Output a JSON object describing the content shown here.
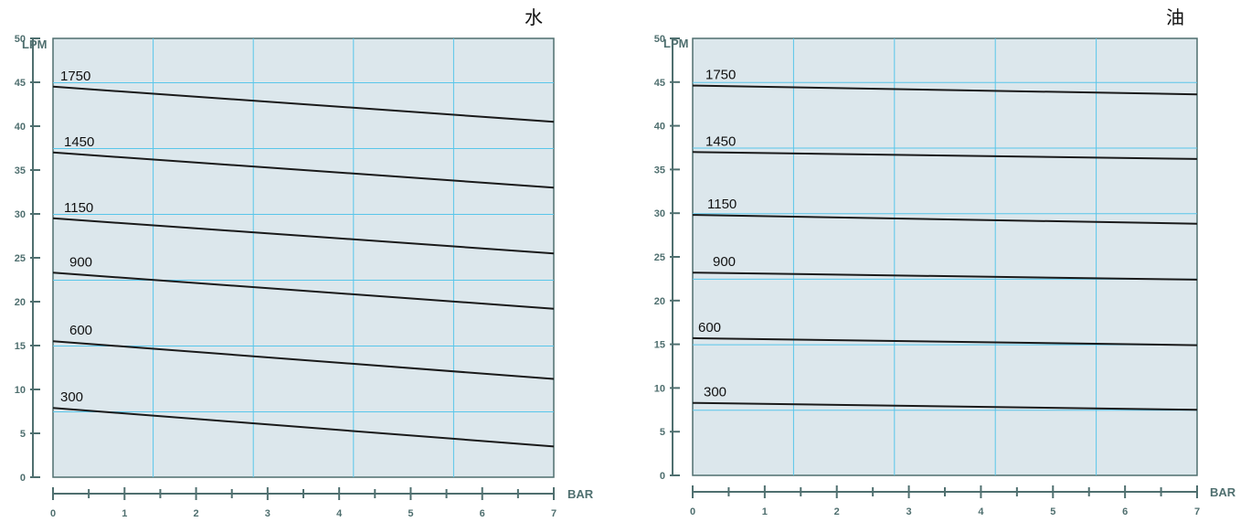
{
  "chart_data": [
    {
      "type": "line",
      "title": "水",
      "xlabel": "BAR",
      "ylabel": "LPM",
      "xlim": [
        0,
        7
      ],
      "ylim": [
        0,
        50
      ],
      "x_ticks": [
        "0",
        "1",
        "2",
        "3",
        "4",
        "5",
        "6",
        "7"
      ],
      "y_ticks": [
        "0",
        "5",
        "10",
        "15",
        "20",
        "25",
        "30",
        "35",
        "40",
        "45",
        "50"
      ],
      "grid": true,
      "series": [
        {
          "name": "1750",
          "x": [
            0,
            7
          ],
          "y": [
            44.5,
            40.5
          ]
        },
        {
          "name": "1450",
          "x": [
            0,
            7
          ],
          "y": [
            37.0,
            33.0
          ]
        },
        {
          "name": "1150",
          "x": [
            0,
            7
          ],
          "y": [
            29.5,
            25.5
          ]
        },
        {
          "name": "900",
          "x": [
            0,
            7
          ],
          "y": [
            23.3,
            19.2
          ]
        },
        {
          "name": "600",
          "x": [
            0,
            7
          ],
          "y": [
            15.5,
            11.2
          ]
        },
        {
          "name": "300",
          "x": [
            0,
            7
          ],
          "y": [
            7.9,
            3.5
          ]
        }
      ]
    },
    {
      "type": "line",
      "title": "油",
      "xlabel": "BAR",
      "ylabel": "LPM",
      "xlim": [
        0,
        7
      ],
      "ylim": [
        0,
        50
      ],
      "x_ticks": [
        "0",
        "1",
        "2",
        "3",
        "4",
        "5",
        "6",
        "7"
      ],
      "y_ticks": [
        "0",
        "5",
        "10",
        "15",
        "20",
        "25",
        "30",
        "35",
        "40",
        "45",
        "50"
      ],
      "grid": true,
      "series": [
        {
          "name": "1750",
          "x": [
            0,
            7
          ],
          "y": [
            44.6,
            43.6
          ]
        },
        {
          "name": "1450",
          "x": [
            0,
            7
          ],
          "y": [
            37.0,
            36.2
          ]
        },
        {
          "name": "1150",
          "x": [
            0,
            7
          ],
          "y": [
            29.8,
            28.8
          ]
        },
        {
          "name": "900",
          "x": [
            0,
            7
          ],
          "y": [
            23.2,
            22.4
          ]
        },
        {
          "name": "600",
          "x": [
            0,
            7
          ],
          "y": [
            15.7,
            14.9
          ]
        },
        {
          "name": "300",
          "x": [
            0,
            7
          ],
          "y": [
            8.3,
            7.5
          ]
        }
      ]
    }
  ]
}
